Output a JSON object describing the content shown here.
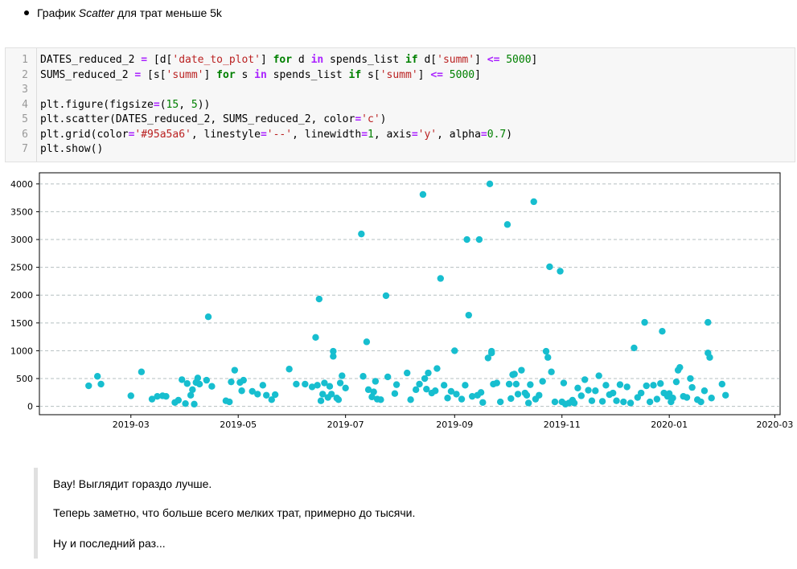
{
  "heading": {
    "prefix": "График ",
    "em": "Scatter",
    "suffix": " для трат меньше 5k"
  },
  "code": {
    "lines": [
      {
        "n": "1"
      },
      {
        "n": "2"
      },
      {
        "n": "3"
      },
      {
        "n": "4"
      },
      {
        "n": "5"
      },
      {
        "n": "6"
      },
      {
        "n": "7"
      }
    ]
  },
  "chart_data": {
    "type": "scatter",
    "color": "#17becf",
    "grid": {
      "axis": "y",
      "color": "#95a5a6",
      "linestyle": "--",
      "alpha": 0.7
    },
    "ylim": [
      -150,
      4200
    ],
    "xlim": [
      "2019-01-08",
      "2020-03-04"
    ],
    "yticks": [
      0,
      500,
      1000,
      1500,
      2000,
      2500,
      3000,
      3500,
      4000
    ],
    "xticks": [
      "2019-03",
      "2019-05",
      "2019-07",
      "2019-09",
      "2019-11",
      "2020-01",
      "2020-03"
    ],
    "points": [
      [
        "2019-02-05",
        370
      ],
      [
        "2019-02-10",
        540
      ],
      [
        "2019-02-12",
        400
      ],
      [
        "2019-03-01",
        190
      ],
      [
        "2019-03-07",
        620
      ],
      [
        "2019-03-13",
        130
      ],
      [
        "2019-03-16",
        180
      ],
      [
        "2019-03-19",
        190
      ],
      [
        "2019-03-21",
        180
      ],
      [
        "2019-03-26",
        70
      ],
      [
        "2019-03-28",
        110
      ],
      [
        "2019-03-30",
        480
      ],
      [
        "2019-04-01",
        50
      ],
      [
        "2019-04-02",
        410
      ],
      [
        "2019-04-04",
        200
      ],
      [
        "2019-04-05",
        300
      ],
      [
        "2019-04-06",
        40
      ],
      [
        "2019-04-07",
        430
      ],
      [
        "2019-04-08",
        510
      ],
      [
        "2019-04-09",
        400
      ],
      [
        "2019-04-13",
        470
      ],
      [
        "2019-04-14",
        1610
      ],
      [
        "2019-04-16",
        360
      ],
      [
        "2019-04-24",
        100
      ],
      [
        "2019-04-26",
        80
      ],
      [
        "2019-04-27",
        440
      ],
      [
        "2019-04-29",
        650
      ],
      [
        "2019-05-02",
        430
      ],
      [
        "2019-05-03",
        280
      ],
      [
        "2019-05-04",
        470
      ],
      [
        "2019-05-09",
        270
      ],
      [
        "2019-05-12",
        220
      ],
      [
        "2019-05-15",
        380
      ],
      [
        "2019-05-17",
        200
      ],
      [
        "2019-05-20",
        120
      ],
      [
        "2019-05-22",
        210
      ],
      [
        "2019-05-30",
        670
      ],
      [
        "2019-06-03",
        400
      ],
      [
        "2019-06-08",
        400
      ],
      [
        "2019-06-12",
        350
      ],
      [
        "2019-06-14",
        1240
      ],
      [
        "2019-06-15",
        380
      ],
      [
        "2019-06-16",
        1930
      ],
      [
        "2019-06-17",
        100
      ],
      [
        "2019-06-18",
        220
      ],
      [
        "2019-06-19",
        420
      ],
      [
        "2019-06-21",
        160
      ],
      [
        "2019-06-22",
        360
      ],
      [
        "2019-06-23",
        220
      ],
      [
        "2019-06-24",
        990
      ],
      [
        "2019-06-24",
        900
      ],
      [
        "2019-06-26",
        150
      ],
      [
        "2019-06-27",
        120
      ],
      [
        "2019-06-28",
        420
      ],
      [
        "2019-06-29",
        550
      ],
      [
        "2019-07-01",
        330
      ],
      [
        "2019-07-10",
        3100
      ],
      [
        "2019-07-11",
        540
      ],
      [
        "2019-07-13",
        1160
      ],
      [
        "2019-07-14",
        300
      ],
      [
        "2019-07-16",
        170
      ],
      [
        "2019-07-17",
        260
      ],
      [
        "2019-07-18",
        450
      ],
      [
        "2019-07-19",
        130
      ],
      [
        "2019-07-21",
        120
      ],
      [
        "2019-07-24",
        1990
      ],
      [
        "2019-07-25",
        530
      ],
      [
        "2019-07-29",
        230
      ],
      [
        "2019-07-30",
        390
      ],
      [
        "2019-08-05",
        600
      ],
      [
        "2019-08-07",
        120
      ],
      [
        "2019-08-10",
        300
      ],
      [
        "2019-08-12",
        400
      ],
      [
        "2019-08-14",
        3810
      ],
      [
        "2019-08-15",
        500
      ],
      [
        "2019-08-16",
        310
      ],
      [
        "2019-08-17",
        600
      ],
      [
        "2019-08-19",
        240
      ],
      [
        "2019-08-21",
        280
      ],
      [
        "2019-08-22",
        680
      ],
      [
        "2019-08-24",
        2300
      ],
      [
        "2019-08-26",
        380
      ],
      [
        "2019-08-28",
        150
      ],
      [
        "2019-08-30",
        270
      ],
      [
        "2019-09-01",
        1000
      ],
      [
        "2019-09-02",
        220
      ],
      [
        "2019-09-05",
        130
      ],
      [
        "2019-09-07",
        380
      ],
      [
        "2019-09-08",
        3000
      ],
      [
        "2019-09-09",
        1640
      ],
      [
        "2019-09-11",
        180
      ],
      [
        "2019-09-14",
        200
      ],
      [
        "2019-09-15",
        3000
      ],
      [
        "2019-09-16",
        250
      ],
      [
        "2019-09-17",
        70
      ],
      [
        "2019-09-20",
        870
      ],
      [
        "2019-09-21",
        4000
      ],
      [
        "2019-09-22",
        960
      ],
      [
        "2019-09-22",
        990
      ],
      [
        "2019-09-23",
        400
      ],
      [
        "2019-09-25",
        420
      ],
      [
        "2019-09-27",
        80
      ],
      [
        "2019-10-01",
        3270
      ],
      [
        "2019-10-02",
        400
      ],
      [
        "2019-10-03",
        140
      ],
      [
        "2019-10-04",
        570
      ],
      [
        "2019-10-05",
        580
      ],
      [
        "2019-10-06",
        400
      ],
      [
        "2019-10-07",
        220
      ],
      [
        "2019-10-09",
        650
      ],
      [
        "2019-10-11",
        240
      ],
      [
        "2019-10-12",
        200
      ],
      [
        "2019-10-13",
        60
      ],
      [
        "2019-10-14",
        390
      ],
      [
        "2019-10-16",
        3680
      ],
      [
        "2019-10-17",
        130
      ],
      [
        "2019-10-19",
        200
      ],
      [
        "2019-10-21",
        450
      ],
      [
        "2019-10-23",
        990
      ],
      [
        "2019-10-24",
        880
      ],
      [
        "2019-10-25",
        2510
      ],
      [
        "2019-10-26",
        620
      ],
      [
        "2019-10-28",
        80
      ],
      [
        "2019-10-31",
        2430
      ],
      [
        "2019-11-01",
        80
      ],
      [
        "2019-11-02",
        420
      ],
      [
        "2019-11-03",
        40
      ],
      [
        "2019-11-05",
        60
      ],
      [
        "2019-11-07",
        110
      ],
      [
        "2019-11-08",
        60
      ],
      [
        "2019-11-10",
        330
      ],
      [
        "2019-11-12",
        190
      ],
      [
        "2019-11-14",
        480
      ],
      [
        "2019-11-16",
        290
      ],
      [
        "2019-11-18",
        100
      ],
      [
        "2019-11-20",
        280
      ],
      [
        "2019-11-22",
        550
      ],
      [
        "2019-11-24",
        90
      ],
      [
        "2019-11-26",
        380
      ],
      [
        "2019-11-28",
        210
      ],
      [
        "2019-11-30",
        240
      ],
      [
        "2019-12-02",
        100
      ],
      [
        "2019-12-04",
        390
      ],
      [
        "2019-12-06",
        80
      ],
      [
        "2019-12-08",
        350
      ],
      [
        "2019-12-10",
        60
      ],
      [
        "2019-12-12",
        1050
      ],
      [
        "2019-12-14",
        160
      ],
      [
        "2019-12-16",
        240
      ],
      [
        "2019-12-18",
        1510
      ],
      [
        "2019-12-19",
        370
      ],
      [
        "2019-12-21",
        80
      ],
      [
        "2019-12-23",
        380
      ],
      [
        "2019-12-25",
        130
      ],
      [
        "2019-12-27",
        410
      ],
      [
        "2019-12-28",
        1350
      ],
      [
        "2019-12-29",
        240
      ],
      [
        "2019-12-31",
        180
      ],
      [
        "2020-01-01",
        230
      ],
      [
        "2020-01-02",
        80
      ],
      [
        "2020-01-03",
        150
      ],
      [
        "2020-01-05",
        440
      ],
      [
        "2020-01-06",
        650
      ],
      [
        "2020-01-07",
        700
      ],
      [
        "2020-01-09",
        180
      ],
      [
        "2020-01-11",
        160
      ],
      [
        "2020-01-13",
        500
      ],
      [
        "2020-01-14",
        340
      ],
      [
        "2020-01-17",
        120
      ],
      [
        "2020-01-19",
        80
      ],
      [
        "2020-01-21",
        280
      ],
      [
        "2020-01-23",
        1510
      ],
      [
        "2020-01-23",
        960
      ],
      [
        "2020-01-24",
        880
      ],
      [
        "2020-01-25",
        150
      ],
      [
        "2020-01-31",
        400
      ],
      [
        "2020-02-02",
        200
      ]
    ]
  },
  "notes": [
    "Вау! Выглядит гораздо лучше.",
    "Теперь заметно, что больше всего мелких трат, примерно до тысячи.",
    "Ну и последний раз..."
  ]
}
